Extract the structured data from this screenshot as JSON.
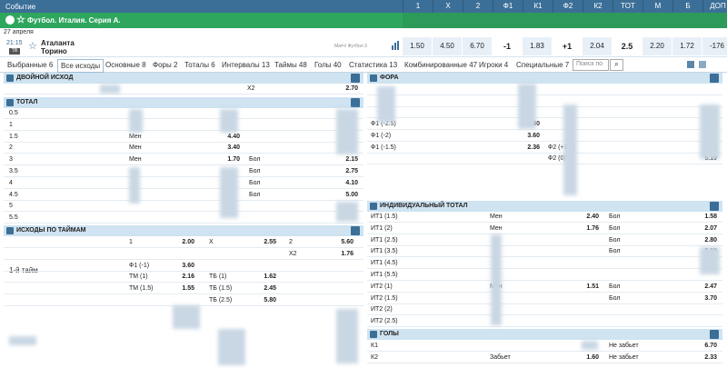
{
  "header": {
    "event_label": "Событие",
    "cols": [
      "1",
      "X",
      "2",
      "Ф1",
      "К1",
      "Ф2",
      "К2",
      "ТОТ",
      "М",
      "Б",
      "ДОП"
    ]
  },
  "league": {
    "title": "Футбол. Италия. Серия А."
  },
  "date": "27 апреля",
  "match": {
    "time": "21:15",
    "live_badge": "ТВ",
    "team1": "Аталанта",
    "team2": "Торино",
    "sub": "Матч! Футбол 3",
    "odds": [
      "1.50",
      "4.50",
      "6.70",
      "-1",
      "1.83",
      "+1",
      "2.04",
      "2.5",
      "2.20",
      "1.72",
      "-176"
    ]
  },
  "tabs": [
    "Выбранные 6",
    "Все исходы",
    "Основные 8",
    "Форы 2",
    "Тоталы 6",
    "Интервалы 13",
    "Таймы 48",
    "Голы 40",
    "Статистика 13",
    "Комбинированные 47",
    "Игроки 4",
    "Специальные 7"
  ],
  "search_placeholder": "Поиск по",
  "dc": {
    "title": "ДВОЙНОЙ ИСХОД",
    "row": {
      "label": "X2",
      "odd": "2.70"
    }
  },
  "total": {
    "title": "ТОТАЛ",
    "rows": [
      {
        "n": "0.5",
        "m": "",
        "mo": "",
        "b": "",
        "bo": ""
      },
      {
        "n": "1",
        "m": "",
        "mo": "",
        "b": "",
        "bo": ""
      },
      {
        "n": "1.5",
        "m": "Мен",
        "mo": "4.40",
        "b": "",
        "bo": ""
      },
      {
        "n": "2",
        "m": "Мен",
        "mo": "3.40",
        "b": "",
        "bo": ""
      },
      {
        "n": "3",
        "m": "Мен",
        "mo": "1.70",
        "b": "Бол",
        "bo": "2.15"
      },
      {
        "n": "3.5",
        "m": "",
        "mo": "",
        "b": "Бол",
        "bo": "2.75"
      },
      {
        "n": "4",
        "m": "",
        "mo": "",
        "b": "Бол",
        "bo": "4.10"
      },
      {
        "n": "4.5",
        "m": "",
        "mo": "",
        "b": "Бол",
        "bo": "5.00"
      },
      {
        "n": "5",
        "m": "",
        "mo": "",
        "b": "",
        "bo": ""
      },
      {
        "n": "5.5",
        "m": "",
        "mo": "",
        "b": "",
        "bo": ""
      }
    ]
  },
  "halves": {
    "title": "ИСХОДЫ ПО ТАЙМАМ",
    "half_label": "1-й тайм",
    "rows": [
      [
        "1",
        "2.00",
        "X",
        "2.55",
        "2",
        "5.60"
      ],
      [
        "",
        "",
        "",
        "",
        "X2",
        "1.76"
      ],
      [
        "Ф1 (-1)",
        "3.60",
        "",
        "",
        "",
        ""
      ],
      [
        "ТМ (1)",
        "2.16",
        "ТБ (1)",
        "1.62",
        "",
        ""
      ],
      [
        "ТМ (1.5)",
        "1.55",
        "ТБ (1.5)",
        "2.45",
        "",
        ""
      ],
      [
        "",
        "",
        "ТБ (2.5)",
        "5.80",
        "",
        ""
      ]
    ]
  },
  "fora": {
    "title": "ФОРА",
    "rows": [
      [
        "",
        "",
        "",
        ""
      ],
      [
        "",
        "",
        "",
        ""
      ],
      [
        "",
        "",
        "",
        ""
      ],
      [
        "Ф1 (-2.5)",
        "4.40",
        "",
        ""
      ],
      [
        "Ф1 (-2)",
        "3.60",
        "",
        ""
      ],
      [
        "Ф1 (-1.5)",
        "2.36",
        "Ф2 (+1.5)",
        "1.59"
      ],
      [
        "",
        "",
        "Ф2 (0)",
        "5.10"
      ]
    ]
  },
  "ind": {
    "title": "ИНДИВИДУАЛЬНЫЙ ТОТАЛ",
    "rows": [
      [
        "ИТ1 (1.5)",
        "Мен",
        "2.40",
        "Бол",
        "1.58"
      ],
      [
        "ИТ1 (2)",
        "Мен",
        "1.76",
        "Бол",
        "2.07"
      ],
      [
        "ИТ1 (2.5)",
        "",
        "",
        "Бол",
        "2.80"
      ],
      [
        "ИТ1 (3.5)",
        "",
        "",
        "Бол",
        "5.90"
      ],
      [
        "ИТ1 (4.5)",
        "",
        "",
        "",
        ""
      ],
      [
        "ИТ1 (5.5)",
        "",
        "",
        "",
        ""
      ],
      [
        "ИТ2 (1)",
        "Мен",
        "1.51",
        "Бол",
        "2.47"
      ],
      [
        "ИТ2 (1.5)",
        "",
        "",
        "Бол",
        "3.70"
      ],
      [
        "ИТ2 (2)",
        "",
        "",
        "",
        ""
      ],
      [
        "ИТ2 (2.5)",
        "",
        "",
        "",
        ""
      ]
    ]
  },
  "goals": {
    "title": "ГОЛЫ",
    "rows": [
      [
        "К1",
        "",
        "",
        "Не забьет",
        "6.70"
      ],
      [
        "К2",
        "Забьет",
        "1.60",
        "Не забьет",
        "2.33"
      ]
    ]
  }
}
